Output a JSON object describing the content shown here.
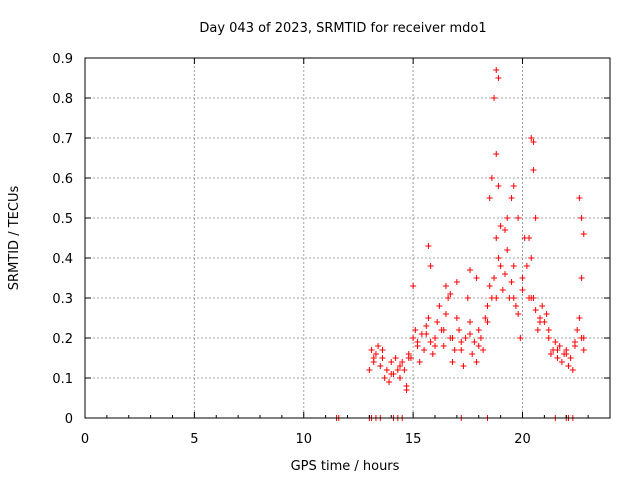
{
  "chart_data": {
    "type": "scatter",
    "title": "Day 043 of 2023, SRMTID for receiver mdo1",
    "xlabel": "GPS time / hours",
    "ylabel": "SRMTID / TECUs",
    "xlim": [
      0,
      24
    ],
    "ylim": [
      0,
      0.9
    ],
    "xticks": [
      0,
      5,
      10,
      15,
      20
    ],
    "xtick_labels": [
      "0",
      "5",
      "10",
      "15",
      "20"
    ],
    "yticks": [
      0,
      0.1,
      0.2,
      0.3,
      0.4,
      0.5,
      0.6,
      0.7,
      0.8,
      0.9
    ],
    "ytick_labels": [
      "0",
      "0.1",
      "0.2",
      "0.3",
      "0.4",
      "0.5",
      "0.6",
      "0.7",
      "0.8",
      "0.9"
    ],
    "grid": true,
    "marker": "+",
    "color": "#ff0000",
    "series": [
      {
        "name": "SRMTID",
        "x": [
          11.5,
          11.6,
          13.0,
          13.1,
          13.3,
          13.5,
          14.1,
          14.3,
          14.5,
          17.2,
          18.4,
          21.5,
          22.0,
          22.1,
          22.3,
          13.0,
          13.1,
          13.2,
          13.3,
          13.4,
          13.5,
          13.6,
          13.7,
          13.8,
          13.9,
          14.0,
          14.1,
          14.2,
          14.3,
          14.4,
          14.5,
          14.6,
          14.7,
          14.8,
          14.9,
          15.0,
          15.1,
          15.2,
          15.3,
          15.4,
          15.5,
          15.6,
          15.7,
          15.8,
          15.9,
          16.0,
          16.1,
          16.2,
          16.3,
          16.4,
          16.5,
          16.6,
          16.7,
          16.8,
          16.9,
          17.0,
          17.1,
          17.2,
          17.3,
          17.4,
          17.5,
          17.6,
          17.7,
          17.8,
          17.9,
          18.0,
          18.1,
          18.2,
          18.3,
          18.4,
          18.5,
          18.6,
          18.7,
          18.8,
          18.9,
          19.0,
          19.1,
          19.2,
          19.3,
          19.4,
          19.5,
          19.6,
          19.7,
          19.8,
          19.9,
          20.0,
          20.1,
          20.2,
          20.3,
          20.4,
          20.5,
          20.6,
          20.7,
          20.8,
          20.9,
          21.0,
          21.1,
          21.2,
          21.3,
          21.4,
          21.5,
          21.6,
          21.7,
          21.8,
          21.9,
          22.0,
          22.1,
          22.2,
          22.3,
          22.4,
          22.5,
          22.6,
          22.7,
          22.8,
          13.2,
          13.6,
          14.0,
          14.4,
          14.8,
          15.2,
          15.6,
          16.0,
          16.4,
          16.8,
          17.2,
          17.6,
          18.0,
          18.4,
          18.8,
          19.2,
          19.6,
          20.0,
          20.4,
          20.8,
          21.2,
          21.6,
          22.0,
          22.4,
          22.8,
          15.7,
          15.8,
          16.5,
          16.7,
          17.0,
          17.6,
          17.9,
          18.5,
          18.6,
          18.7,
          18.8,
          18.8,
          18.9,
          18.9,
          19.0,
          19.3,
          19.5,
          19.6,
          19.8,
          20.3,
          20.4,
          20.5,
          20.5,
          20.6,
          22.6,
          22.7,
          22.8,
          22.7,
          14.7,
          15.0
        ],
        "y": [
          0,
          0,
          0,
          0,
          0,
          0,
          0,
          0,
          0,
          0,
          0,
          0,
          0,
          0,
          0,
          0.12,
          0.17,
          0.15,
          0.16,
          0.18,
          0.13,
          0.17,
          0.1,
          0.12,
          0.09,
          0.14,
          0.11,
          0.15,
          0.12,
          0.1,
          0.14,
          0.12,
          0.08,
          0.16,
          0.15,
          0.2,
          0.22,
          0.18,
          0.14,
          0.21,
          0.17,
          0.23,
          0.25,
          0.19,
          0.16,
          0.2,
          0.24,
          0.28,
          0.22,
          0.18,
          0.26,
          0.3,
          0.2,
          0.14,
          0.17,
          0.25,
          0.22,
          0.17,
          0.13,
          0.2,
          0.3,
          0.24,
          0.16,
          0.19,
          0.14,
          0.22,
          0.2,
          0.17,
          0.25,
          0.28,
          0.33,
          0.3,
          0.35,
          0.45,
          0.4,
          0.38,
          0.32,
          0.47,
          0.42,
          0.3,
          0.34,
          0.38,
          0.28,
          0.26,
          0.2,
          0.35,
          0.45,
          0.38,
          0.3,
          0.4,
          0.3,
          0.27,
          0.22,
          0.25,
          0.28,
          0.24,
          0.26,
          0.2,
          0.16,
          0.17,
          0.19,
          0.15,
          0.18,
          0.14,
          0.16,
          0.17,
          0.13,
          0.15,
          0.12,
          0.19,
          0.22,
          0.25,
          0.2,
          0.17,
          0.14,
          0.15,
          0.11,
          0.13,
          0.15,
          0.19,
          0.21,
          0.18,
          0.22,
          0.2,
          0.19,
          0.21,
          0.18,
          0.24,
          0.3,
          0.36,
          0.3,
          0.32,
          0.3,
          0.24,
          0.22,
          0.17,
          0.16,
          0.18,
          0.2,
          0.43,
          0.38,
          0.33,
          0.31,
          0.34,
          0.37,
          0.35,
          0.55,
          0.6,
          0.8,
          0.87,
          0.66,
          0.85,
          0.58,
          0.48,
          0.5,
          0.55,
          0.58,
          0.5,
          0.45,
          0.7,
          0.69,
          0.62,
          0.5,
          0.55,
          0.5,
          0.46,
          0.35,
          0.07,
          0.33
        ]
      }
    ]
  }
}
